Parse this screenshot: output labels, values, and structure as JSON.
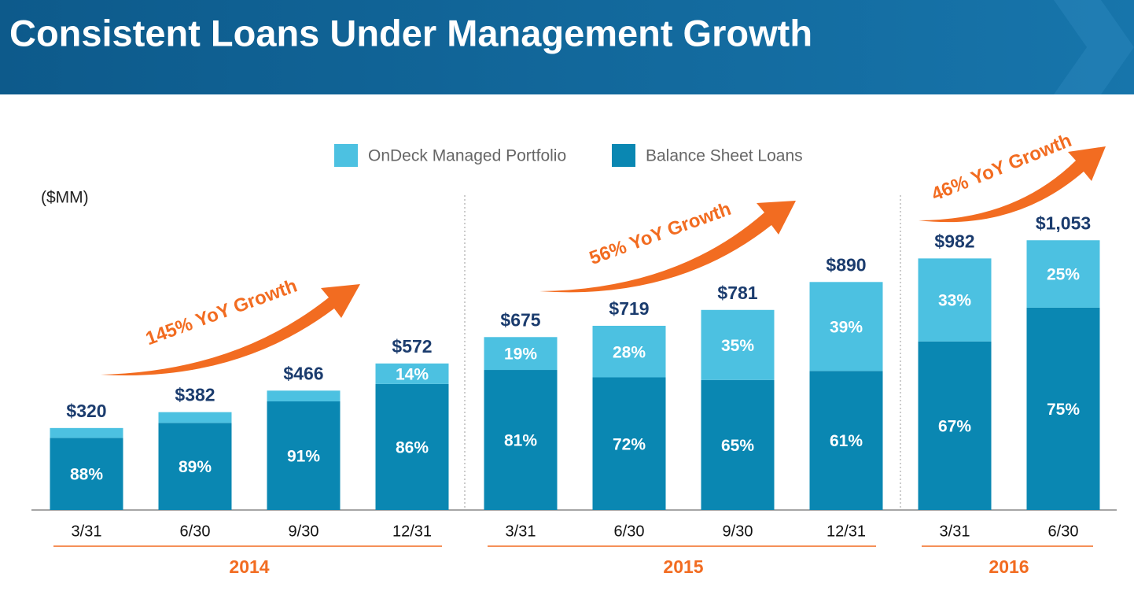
{
  "chart_data": {
    "type": "stacked_bar",
    "title": "Consistent Loans Under Management Growth",
    "unit_label": "($MM)",
    "groups": [
      {
        "name": "2014",
        "categories": [
          "3/31",
          "6/30",
          "9/30",
          "12/31"
        ]
      },
      {
        "name": "2015",
        "categories": [
          "3/31",
          "6/30",
          "9/30",
          "12/31"
        ]
      },
      {
        "name": "2016",
        "categories": [
          "3/31",
          "6/30"
        ]
      }
    ],
    "totals": {
      "values": [
        320,
        382,
        466,
        572,
        675,
        719,
        781,
        890,
        982,
        1053
      ],
      "value_labels": [
        "$320",
        "$382",
        "$466",
        "$572",
        "$675",
        "$719",
        "$781",
        "$890",
        "$982",
        "$1,053"
      ]
    },
    "series": [
      {
        "name": "Balance Sheet Loans",
        "color": "#0a87b2",
        "values": [
          88,
          89,
          91,
          86,
          81,
          72,
          65,
          61,
          67,
          75
        ],
        "value_labels": [
          "88%",
          "89%",
          "91%",
          "86%",
          "81%",
          "72%",
          "65%",
          "61%",
          "67%",
          "75%"
        ]
      },
      {
        "name": "OnDeck Managed Portfolio",
        "color": "#4cc1e1",
        "values": [
          12,
          11,
          9,
          14,
          19,
          28,
          35,
          39,
          33,
          25
        ],
        "value_labels": [
          null,
          null,
          null,
          "14%",
          "19%",
          "28%",
          "35%",
          "39%",
          "33%",
          "25%"
        ]
      }
    ],
    "legend_order": [
      1,
      0
    ],
    "annotations": [
      "145% YoY Growth",
      "56% YoY Growth",
      "46% YoY Growth"
    ],
    "annotation_color": "#f26c21"
  }
}
